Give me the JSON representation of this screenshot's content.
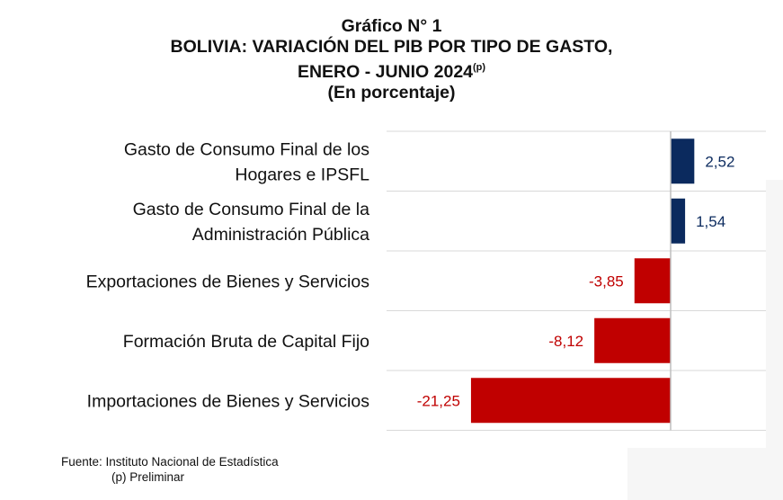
{
  "title": {
    "line1": "Gráfico N° 1",
    "line2": "BOLIVIA: VARIACIÓN DEL PIB POR TIPO DE GASTO,",
    "line3": "ENERO - JUNIO 2024",
    "line3_sup": "(p)",
    "line4": "(En porcentaje)"
  },
  "chart_data": {
    "type": "bar",
    "orientation": "horizontal",
    "categories": [
      [
        "Gasto de Consumo Final de los",
        "Hogares e  IPSFL"
      ],
      [
        "Gasto de Consumo Final de la",
        "Administración Pública"
      ],
      [
        "Exportaciones de Bienes y Servicios"
      ],
      [
        "Formación Bruta de Capital Fijo"
      ],
      [
        "Importaciones de Bienes y Servicios"
      ]
    ],
    "values": [
      2.52,
      1.54,
      -3.85,
      -8.12,
      -21.25
    ],
    "value_labels": [
      "2,52",
      "1,54",
      "-3,85",
      "-8,12",
      "-21,25"
    ],
    "colors": {
      "positive": "#0b2a5e",
      "negative": "#c00000",
      "gridline": "#d9d9d9",
      "axis": "#bfbfbf"
    },
    "grid": true
  },
  "footer": {
    "source": "Fuente: Instituto Nacional de Estadística",
    "note": "(p) Preliminar"
  }
}
